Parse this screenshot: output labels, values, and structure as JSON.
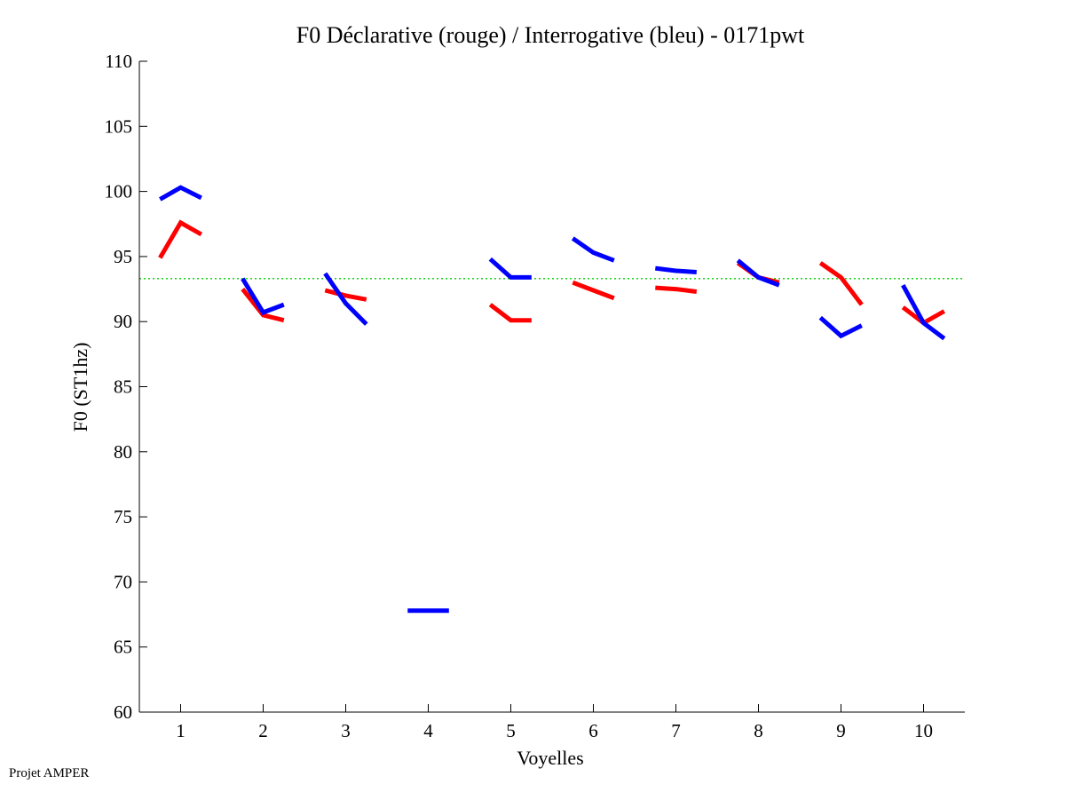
{
  "chart_data": {
    "type": "line",
    "title": "F0 Déclarative (rouge) / Interrogative (bleu) - 0171pwt",
    "xlabel": "Voyelles",
    "ylabel": "F0 (ST1hz)",
    "xlim": [
      0.5,
      10.5
    ],
    "ylim": [
      60,
      110
    ],
    "xticks": [
      "1",
      "2",
      "3",
      "4",
      "5",
      "6",
      "7",
      "8",
      "9",
      "10"
    ],
    "yticks": [
      "60",
      "65",
      "70",
      "75",
      "80",
      "85",
      "90",
      "95",
      "100",
      "105",
      "110"
    ],
    "reference_line": {
      "y": 93.3,
      "color": "#00cc00",
      "style": "dotted"
    },
    "series": [
      {
        "name": "Déclarative (rouge)",
        "color": "#ff0000",
        "segments": [
          [
            [
              0.75,
              94.9
            ],
            [
              1.0,
              97.6
            ],
            [
              1.25,
              96.7
            ]
          ],
          [
            [
              1.75,
              92.5
            ],
            [
              2.0,
              90.5
            ],
            [
              2.25,
              90.1
            ]
          ],
          [
            [
              2.75,
              92.4
            ],
            [
              3.0,
              92.0
            ],
            [
              3.25,
              91.7
            ]
          ],
          [
            [
              4.75,
              91.3
            ],
            [
              5.0,
              90.1
            ],
            [
              5.25,
              90.1
            ]
          ],
          [
            [
              5.75,
              93.0
            ],
            [
              6.0,
              92.4
            ],
            [
              6.25,
              91.8
            ]
          ],
          [
            [
              6.75,
              92.6
            ],
            [
              7.0,
              92.5
            ],
            [
              7.25,
              92.3
            ]
          ],
          [
            [
              7.75,
              94.5
            ],
            [
              8.0,
              93.4
            ],
            [
              8.25,
              93.0
            ]
          ],
          [
            [
              8.75,
              94.5
            ],
            [
              9.0,
              93.4
            ],
            [
              9.25,
              91.3
            ]
          ],
          [
            [
              9.75,
              91.1
            ],
            [
              10.0,
              89.9
            ],
            [
              10.25,
              90.8
            ]
          ]
        ]
      },
      {
        "name": "Interrogative (bleu)",
        "color": "#0000ff",
        "segments": [
          [
            [
              0.75,
              99.4
            ],
            [
              1.0,
              100.3
            ],
            [
              1.25,
              99.5
            ]
          ],
          [
            [
              1.75,
              93.3
            ],
            [
              2.0,
              90.7
            ],
            [
              2.25,
              91.3
            ]
          ],
          [
            [
              2.75,
              93.7
            ],
            [
              3.0,
              91.4
            ],
            [
              3.25,
              89.8
            ]
          ],
          [
            [
              3.75,
              67.8
            ],
            [
              4.0,
              67.8
            ],
            [
              4.25,
              67.8
            ]
          ],
          [
            [
              4.75,
              94.8
            ],
            [
              5.0,
              93.4
            ],
            [
              5.25,
              93.4
            ]
          ],
          [
            [
              5.75,
              96.4
            ],
            [
              6.0,
              95.3
            ],
            [
              6.25,
              94.7
            ]
          ],
          [
            [
              6.75,
              94.1
            ],
            [
              7.0,
              93.9
            ],
            [
              7.25,
              93.8
            ]
          ],
          [
            [
              7.75,
              94.7
            ],
            [
              8.0,
              93.4
            ],
            [
              8.25,
              92.8
            ]
          ],
          [
            [
              8.75,
              90.3
            ],
            [
              9.0,
              88.9
            ],
            [
              9.25,
              89.7
            ]
          ],
          [
            [
              9.75,
              92.8
            ],
            [
              10.0,
              89.9
            ],
            [
              10.25,
              88.7
            ]
          ]
        ]
      }
    ]
  },
  "footer": {
    "text": "Projet AMPER"
  }
}
